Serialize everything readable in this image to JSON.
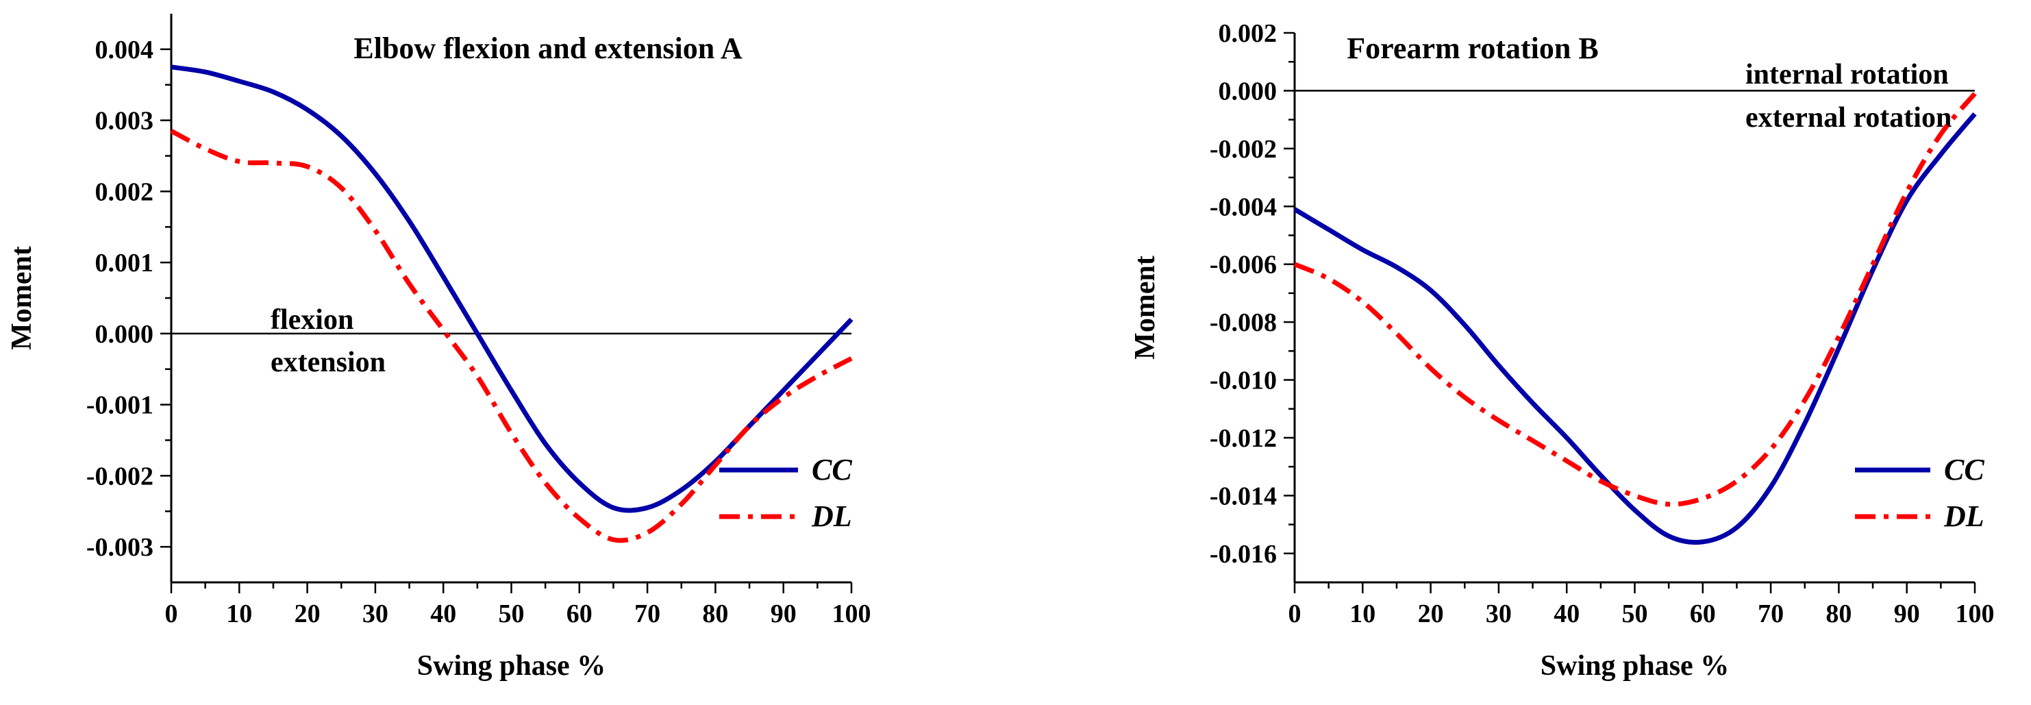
{
  "chart_data": [
    {
      "id": "A",
      "type": "line",
      "title": "Elbow flexion and extension  A",
      "xlabel": "Swing phase %",
      "ylabel": "Moment",
      "xlim": [
        0,
        100
      ],
      "ylim": [
        -0.0035,
        0.0045
      ],
      "xticks": [
        0,
        10,
        20,
        30,
        40,
        50,
        60,
        70,
        80,
        90,
        100
      ],
      "yticks": [
        -0.003,
        -0.002,
        -0.001,
        0.0,
        0.001,
        0.002,
        0.003,
        0.004
      ],
      "ytick_labels": [
        "-0.003",
        "-0.002",
        "-0.001",
        "0.000",
        "0.001",
        "0.002",
        "0.003",
        "0.004"
      ],
      "reference_line": 0,
      "annotations": [
        "flexion",
        "extension"
      ],
      "legend": {
        "position": "bottom-right",
        "entries": [
          "CC",
          "DL"
        ]
      },
      "series": [
        {
          "name": "CC",
          "color": "#0000A8",
          "style": "solid",
          "x": [
            0,
            5,
            10,
            15,
            20,
            25,
            30,
            35,
            40,
            45,
            50,
            55,
            60,
            65,
            70,
            75,
            80,
            85,
            90,
            95,
            100
          ],
          "y": [
            0.00375,
            0.00368,
            0.00355,
            0.0034,
            0.00315,
            0.00278,
            0.00225,
            0.00158,
            0.0008,
            0.0,
            -0.0008,
            -0.00155,
            -0.0021,
            -0.00245,
            -0.00245,
            -0.0022,
            -0.0018,
            -0.0013,
            -0.0008,
            -0.0003,
            0.0002
          ]
        },
        {
          "name": "DL",
          "color": "#FF0000",
          "style": "dashdot",
          "x": [
            0,
            5,
            10,
            15,
            20,
            25,
            30,
            35,
            40,
            45,
            50,
            55,
            60,
            65,
            70,
            75,
            80,
            85,
            90,
            95,
            100
          ],
          "y": [
            0.00285,
            0.0026,
            0.00242,
            0.0024,
            0.00235,
            0.00205,
            0.00145,
            0.0007,
            5e-05,
            -0.0006,
            -0.0014,
            -0.0021,
            -0.0026,
            -0.0029,
            -0.0028,
            -0.0024,
            -0.00185,
            -0.0013,
            -0.0009,
            -0.0006,
            -0.00035
          ]
        }
      ]
    },
    {
      "id": "B",
      "type": "line",
      "title": "Forearm rotation B",
      "xlabel": "Swing phase %",
      "ylabel": "Moment",
      "xlim": [
        0,
        100
      ],
      "ylim": [
        -0.017,
        0.002
      ],
      "xticks": [
        0,
        10,
        20,
        30,
        40,
        50,
        60,
        70,
        80,
        90,
        100
      ],
      "yticks": [
        -0.016,
        -0.014,
        -0.012,
        -0.01,
        -0.008,
        -0.006,
        -0.004,
        -0.002,
        0.0,
        0.002
      ],
      "ytick_labels": [
        "-0.016",
        "-0.014",
        "-0.012",
        "-0.010",
        "-0.008",
        "-0.006",
        "-0.004",
        "-0.002",
        "0.000",
        "0.002"
      ],
      "reference_line": 0,
      "annotations": [
        "internal rotation",
        "external rotation"
      ],
      "legend": {
        "position": "bottom-right",
        "entries": [
          "CC",
          "DL"
        ]
      },
      "series": [
        {
          "name": "CC",
          "color": "#0000A8",
          "style": "solid",
          "x": [
            0,
            5,
            10,
            15,
            20,
            25,
            30,
            35,
            40,
            45,
            50,
            55,
            60,
            65,
            70,
            75,
            80,
            85,
            90,
            95,
            100
          ],
          "y": [
            -0.0041,
            -0.0048,
            -0.0055,
            -0.0061,
            -0.0069,
            -0.0081,
            -0.0095,
            -0.0108,
            -0.012,
            -0.0133,
            -0.0145,
            -0.0154,
            -0.0156,
            -0.0151,
            -0.0137,
            -0.0115,
            -0.0089,
            -0.0062,
            -0.0038,
            -0.0022,
            -0.0008
          ]
        },
        {
          "name": "DL",
          "color": "#FF0000",
          "style": "dashdot",
          "x": [
            0,
            5,
            10,
            15,
            20,
            25,
            30,
            35,
            40,
            45,
            50,
            55,
            60,
            65,
            70,
            75,
            80,
            85,
            90,
            95,
            100
          ],
          "y": [
            -0.006,
            -0.0065,
            -0.0073,
            -0.0084,
            -0.0096,
            -0.0106,
            -0.0114,
            -0.0121,
            -0.0128,
            -0.0135,
            -0.014,
            -0.0143,
            -0.0141,
            -0.0135,
            -0.0124,
            -0.0107,
            -0.0085,
            -0.006,
            -0.0035,
            -0.0015,
            -0.0001
          ]
        }
      ]
    }
  ]
}
